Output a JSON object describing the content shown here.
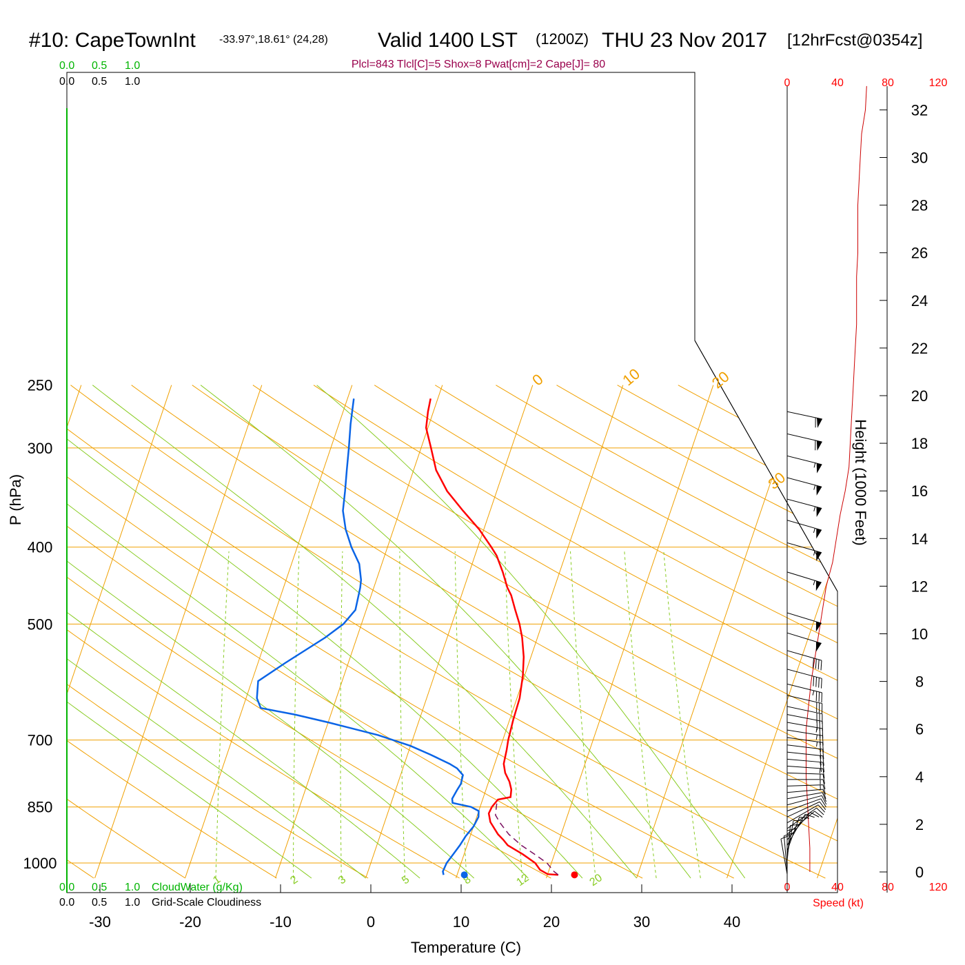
{
  "header": {
    "title_main": "#10: CapeTownInt",
    "title_coords": "-33.97°,18.61° (24,28)",
    "title_valid": "Valid 1400 LST",
    "title_utc": "(1200Z)",
    "title_date": "THU 23 Nov 2017",
    "title_fcst": "[12hrFcst@0354z]",
    "indices": "Plcl=843 Tlcl[C]=5 Shox=8 Pwat[cm]=2 Cape[J]= 80"
  },
  "colors": {
    "temperature": "#ff0000",
    "dewpoint": "#0a64e6",
    "isotherm": "#f0a000",
    "dry_adiabat": "#f0a000",
    "moist_adiabat": "#88cc22",
    "mixing_ratio": "#88cc22",
    "parcel": "#7a1060",
    "height": "#cc0000",
    "indices_text": "#99004c",
    "cloud_scale": "#00b400"
  },
  "cloud_scale": {
    "top_green": [
      "0.0",
      "0.5",
      "1.0"
    ],
    "top_black": [
      "0.0",
      "0.5",
      "1.0"
    ],
    "bottom_green": [
      "0.0",
      "0.5",
      "1.0"
    ],
    "bottom_green_label": "CloudWater (g/Kg)",
    "bottom_black": [
      "0.0",
      "0.5",
      "1.0"
    ],
    "bottom_black_label": "Grid-Scale Cloudiness"
  },
  "speed_axis": {
    "top_ticks": [
      "0",
      "40",
      "80",
      "120"
    ],
    "bottom_ticks": [
      "0",
      "40",
      "80",
      "120"
    ],
    "label": "Speed (kt)"
  },
  "chart_data": {
    "type": "line",
    "xlabel": "Temperature (C)",
    "ylabel": "P (hPa)",
    "xlim": [
      -34,
      46
    ],
    "ylim": [
      1045,
      250
    ],
    "yscale": "log",
    "x_ticks": [
      "-30",
      "-20",
      "-10",
      "0",
      "10",
      "20",
      "30",
      "40"
    ],
    "y_ticks": [
      "250",
      "300",
      "400",
      "500",
      "700",
      "850",
      "1000"
    ],
    "isobar_values": [
      300,
      400,
      500,
      700,
      850,
      1000
    ],
    "isotherm_labels": [
      {
        "value": -10,
        "text": "-10",
        "side": "left"
      },
      {
        "value": -20,
        "text": "-20",
        "side": "left"
      },
      {
        "value": -30,
        "text": "-30",
        "side": "left"
      },
      {
        "value": 0,
        "text": "0",
        "side": "left"
      },
      {
        "value": 10,
        "text": "10",
        "side": "left"
      },
      {
        "value": 0,
        "text": "0",
        "side": "right"
      },
      {
        "value": 10,
        "text": "10",
        "side": "right"
      },
      {
        "value": 20,
        "text": "20",
        "side": "right"
      },
      {
        "value": 30,
        "text": "30",
        "side": "right"
      }
    ],
    "mixing_ratio_labels": [
      "1",
      "2",
      "3",
      "5",
      "8",
      "12",
      "20"
    ],
    "series": [
      {
        "name": "Temperature",
        "points": [
          [
            21.2,
            1035
          ],
          [
            20.0,
            1033
          ],
          [
            19.0,
            1020
          ],
          [
            18.2,
            1000
          ],
          [
            16.5,
            975
          ],
          [
            14.5,
            950
          ],
          [
            13.8,
            935
          ],
          [
            13.0,
            920
          ],
          [
            11.7,
            888
          ],
          [
            11.2,
            866
          ],
          [
            11.3,
            850
          ],
          [
            11.7,
            832
          ],
          [
            13.0,
            826
          ],
          [
            12.8,
            808
          ],
          [
            12.3,
            790
          ],
          [
            11.5,
            770
          ],
          [
            11.0,
            750
          ],
          [
            10.8,
            720
          ],
          [
            10.6,
            700
          ],
          [
            10.4,
            660
          ],
          [
            10.3,
            620
          ],
          [
            9.8,
            580
          ],
          [
            9.2,
            550
          ],
          [
            8.3,
            520
          ],
          [
            7.5,
            500
          ],
          [
            6.5,
            480
          ],
          [
            5.5,
            460
          ],
          [
            4.8,
            450
          ],
          [
            3.7,
            430
          ],
          [
            2.4,
            410
          ],
          [
            1.5,
            400
          ],
          [
            -0.5,
            380
          ],
          [
            -3.0,
            360
          ],
          [
            -5.5,
            340
          ],
          [
            -7.5,
            320
          ],
          [
            -8.9,
            300
          ],
          [
            -10.2,
            283
          ],
          [
            -10.6,
            270
          ],
          [
            -10.8,
            260
          ]
        ]
      },
      {
        "name": "Dewpoint",
        "points": [
          [
            8.5,
            1035
          ],
          [
            8.3,
            1025
          ],
          [
            8.4,
            1000
          ],
          [
            8.8,
            975
          ],
          [
            9.2,
            950
          ],
          [
            9.5,
            925
          ],
          [
            10.0,
            900
          ],
          [
            10.2,
            875
          ],
          [
            10.0,
            860
          ],
          [
            9.0,
            850
          ],
          [
            6.8,
            840
          ],
          [
            6.6,
            830
          ],
          [
            6.8,
            810
          ],
          [
            7.0,
            795
          ],
          [
            6.9,
            775
          ],
          [
            6.0,
            760
          ],
          [
            5.0,
            750
          ],
          [
            2.5,
            730
          ],
          [
            0.0,
            712
          ],
          [
            -4.0,
            690
          ],
          [
            -10.0,
            665
          ],
          [
            -14.0,
            650
          ],
          [
            -18.0,
            638
          ],
          [
            -18.8,
            620
          ],
          [
            -19.3,
            590
          ],
          [
            -17.0,
            560
          ],
          [
            -13.5,
            520
          ],
          [
            -12.0,
            500
          ],
          [
            -11.2,
            480
          ],
          [
            -11.5,
            450
          ],
          [
            -11.7,
            440
          ],
          [
            -12.5,
            420
          ],
          [
            -14.0,
            400
          ],
          [
            -15.3,
            380
          ],
          [
            -16.3,
            360
          ],
          [
            -16.8,
            340
          ],
          [
            -17.4,
            320
          ],
          [
            -18.0,
            300
          ],
          [
            -18.7,
            280
          ],
          [
            -19.0,
            270
          ],
          [
            -19.3,
            260
          ]
        ]
      },
      {
        "name": "Parcel",
        "points": [
          [
            21.2,
            1035
          ],
          [
            20.6,
            1025
          ],
          [
            19.5,
            1000
          ],
          [
            17.8,
            975
          ],
          [
            16.0,
            950
          ],
          [
            14.2,
            920
          ],
          [
            12.8,
            890
          ],
          [
            12.0,
            870
          ],
          [
            11.8,
            850
          ],
          [
            11.7,
            840
          ]
        ]
      }
    ],
    "surface_markers": [
      {
        "name": "surface-temperature",
        "t": 23.0,
        "p": 1035
      },
      {
        "name": "surface-dewpoint",
        "t": 10.8,
        "p": 1035
      }
    ]
  },
  "height_profile": {
    "axis_label": "Height (1000 Feet)",
    "height_ticks": [
      0,
      2,
      4,
      6,
      8,
      10,
      12,
      14,
      16,
      18,
      20,
      22,
      24,
      26,
      28,
      30,
      32
    ],
    "speed_points_kt": [
      [
        0,
        18
      ],
      [
        1,
        18
      ],
      [
        2,
        17
      ],
      [
        3,
        16
      ],
      [
        4,
        15
      ],
      [
        5,
        15
      ],
      [
        6,
        15
      ],
      [
        7,
        17
      ],
      [
        8,
        19
      ],
      [
        9,
        22
      ],
      [
        10,
        25
      ],
      [
        11,
        28
      ],
      [
        12,
        31
      ],
      [
        13,
        36
      ],
      [
        14,
        39
      ],
      [
        15,
        42
      ],
      [
        16,
        46
      ],
      [
        17,
        49
      ],
      [
        18,
        50
      ],
      [
        19,
        51
      ],
      [
        20,
        52
      ],
      [
        21,
        53
      ],
      [
        22,
        54
      ],
      [
        23,
        55
      ],
      [
        24,
        55
      ],
      [
        25,
        55
      ],
      [
        26,
        56
      ],
      [
        27,
        56
      ],
      [
        28,
        56
      ],
      [
        29,
        57
      ],
      [
        30,
        58
      ],
      [
        31,
        59
      ],
      [
        32,
        62
      ],
      [
        33,
        63
      ]
    ]
  },
  "wind_barbs": [
    {
      "p": 1033,
      "dir": 170,
      "spd": 10
    },
    {
      "p": 1025,
      "dir": 175,
      "spd": 10
    },
    {
      "p": 1010,
      "dir": 180,
      "spd": 10
    },
    {
      "p": 995,
      "dir": 185,
      "spd": 10
    },
    {
      "p": 980,
      "dir": 190,
      "spd": 10
    },
    {
      "p": 965,
      "dir": 200,
      "spd": 10
    },
    {
      "p": 950,
      "dir": 210,
      "spd": 10
    },
    {
      "p": 935,
      "dir": 220,
      "spd": 10
    },
    {
      "p": 920,
      "dir": 230,
      "spd": 10
    },
    {
      "p": 905,
      "dir": 235,
      "spd": 10
    },
    {
      "p": 890,
      "dir": 240,
      "spd": 10
    },
    {
      "p": 875,
      "dir": 245,
      "spd": 10
    },
    {
      "p": 860,
      "dir": 250,
      "spd": 10
    },
    {
      "p": 845,
      "dir": 255,
      "spd": 10
    },
    {
      "p": 830,
      "dir": 260,
      "spd": 10
    },
    {
      "p": 815,
      "dir": 265,
      "spd": 10
    },
    {
      "p": 800,
      "dir": 268,
      "spd": 15
    },
    {
      "p": 785,
      "dir": 270,
      "spd": 15
    },
    {
      "p": 770,
      "dir": 272,
      "spd": 15
    },
    {
      "p": 755,
      "dir": 274,
      "spd": 15
    },
    {
      "p": 740,
      "dir": 275,
      "spd": 20
    },
    {
      "p": 725,
      "dir": 276,
      "spd": 20
    },
    {
      "p": 710,
      "dir": 277,
      "spd": 20
    },
    {
      "p": 695,
      "dir": 278,
      "spd": 25
    },
    {
      "p": 680,
      "dir": 279,
      "spd": 25
    },
    {
      "p": 665,
      "dir": 280,
      "spd": 25
    },
    {
      "p": 650,
      "dir": 281,
      "spd": 30
    },
    {
      "p": 635,
      "dir": 282,
      "spd": 30
    },
    {
      "p": 615,
      "dir": 283,
      "spd": 30
    },
    {
      "p": 595,
      "dir": 284,
      "spd": 35
    },
    {
      "p": 570,
      "dir": 285,
      "spd": 40
    },
    {
      "p": 540,
      "dir": 286,
      "spd": 40
    },
    {
      "p": 513,
      "dir": 287,
      "spd": 50
    },
    {
      "p": 484,
      "dir": 287,
      "spd": 50
    },
    {
      "p": 430,
      "dir": 287,
      "spd": 55
    },
    {
      "p": 395,
      "dir": 286,
      "spd": 55
    },
    {
      "p": 370,
      "dir": 286,
      "spd": 55
    },
    {
      "p": 348,
      "dir": 285,
      "spd": 55
    },
    {
      "p": 327,
      "dir": 285,
      "spd": 55
    },
    {
      "p": 307,
      "dir": 284,
      "spd": 55
    },
    {
      "p": 288,
      "dir": 283,
      "spd": 60
    },
    {
      "p": 270,
      "dir": 282,
      "spd": 60
    }
  ]
}
